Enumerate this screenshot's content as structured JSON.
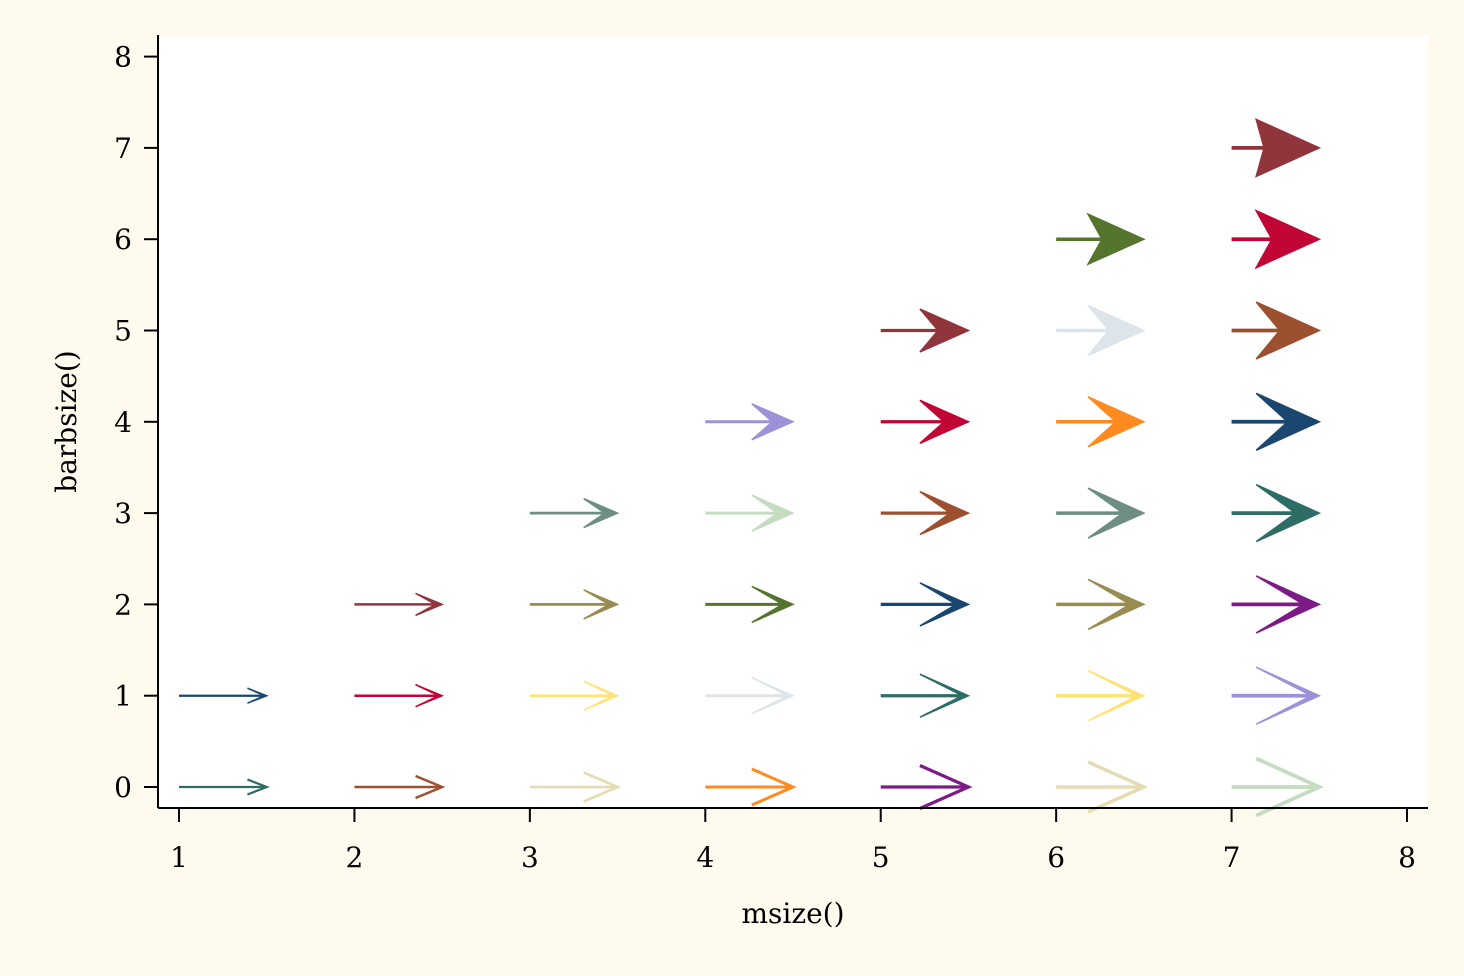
{
  "chart_data": {
    "type": "scatter",
    "marker": "arrow",
    "title": "",
    "xlabel": "msize()",
    "ylabel": "barbsize()",
    "xlim": [
      1,
      8
    ],
    "ylim": [
      0,
      8
    ],
    "xticks": [
      1,
      2,
      3,
      4,
      5,
      6,
      7,
      8
    ],
    "yticks": [
      0,
      1,
      2,
      3,
      4,
      5,
      6,
      7,
      8
    ],
    "arrow_length": 0.5,
    "grid": false,
    "legend": "none",
    "background_color": "#fffaee",
    "plot_color": "#ffffff",
    "arrows": [
      {
        "msize": 1,
        "barbsize": 0,
        "color": "#2d6d66"
      },
      {
        "msize": 1,
        "barbsize": 1,
        "color": "#1a476f"
      },
      {
        "msize": 2,
        "barbsize": 0,
        "color": "#9c5030"
      },
      {
        "msize": 2,
        "barbsize": 1,
        "color": "#c10534"
      },
      {
        "msize": 2,
        "barbsize": 2,
        "color": "#90353b"
      },
      {
        "msize": 3,
        "barbsize": 0,
        "color": "#e6dcb4"
      },
      {
        "msize": 3,
        "barbsize": 1,
        "color": "#ffe37a"
      },
      {
        "msize": 3,
        "barbsize": 2,
        "color": "#998c51"
      },
      {
        "msize": 3,
        "barbsize": 3,
        "color": "#6e8e84"
      },
      {
        "msize": 4,
        "barbsize": 0,
        "color": "#ff8a20"
      },
      {
        "msize": 4,
        "barbsize": 1,
        "color": "#dde4ea"
      },
      {
        "msize": 4,
        "barbsize": 2,
        "color": "#55752f"
      },
      {
        "msize": 4,
        "barbsize": 3,
        "color": "#c4dcbf"
      },
      {
        "msize": 4,
        "barbsize": 4,
        "color": "#9b92d8"
      },
      {
        "msize": 5,
        "barbsize": 0,
        "color": "#7d1b86"
      },
      {
        "msize": 5,
        "barbsize": 1,
        "color": "#2d6d66"
      },
      {
        "msize": 5,
        "barbsize": 2,
        "color": "#1a476f"
      },
      {
        "msize": 5,
        "barbsize": 3,
        "color": "#9c5030"
      },
      {
        "msize": 5,
        "barbsize": 4,
        "color": "#c10534"
      },
      {
        "msize": 5,
        "barbsize": 5,
        "color": "#90353b"
      },
      {
        "msize": 6,
        "barbsize": 0,
        "color": "#e6dcb4"
      },
      {
        "msize": 6,
        "barbsize": 1,
        "color": "#ffe37a"
      },
      {
        "msize": 6,
        "barbsize": 2,
        "color": "#998c51"
      },
      {
        "msize": 6,
        "barbsize": 3,
        "color": "#6e8e84"
      },
      {
        "msize": 6,
        "barbsize": 4,
        "color": "#ff8a20"
      },
      {
        "msize": 6,
        "barbsize": 5,
        "color": "#dde4ea"
      },
      {
        "msize": 6,
        "barbsize": 6,
        "color": "#55752f"
      },
      {
        "msize": 7,
        "barbsize": 0,
        "color": "#c4dcbf"
      },
      {
        "msize": 7,
        "barbsize": 1,
        "color": "#9b92d8"
      },
      {
        "msize": 7,
        "barbsize": 2,
        "color": "#7d1b86"
      },
      {
        "msize": 7,
        "barbsize": 3,
        "color": "#2d6d66"
      },
      {
        "msize": 7,
        "barbsize": 4,
        "color": "#1a476f"
      },
      {
        "msize": 7,
        "barbsize": 5,
        "color": "#9c5030"
      },
      {
        "msize": 7,
        "barbsize": 6,
        "color": "#c10534"
      },
      {
        "msize": 7,
        "barbsize": 7,
        "color": "#90353b"
      }
    ]
  }
}
